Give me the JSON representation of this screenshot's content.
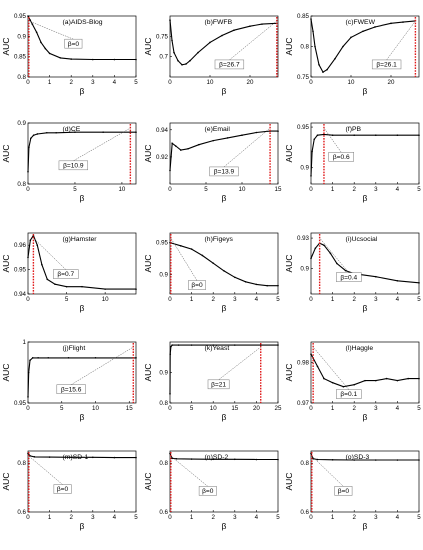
{
  "chart_data": [
    {
      "type": "line",
      "title": "(a)AIDS-Blog",
      "xlabel": "β",
      "ylabel": "AUC",
      "xlim": [
        0,
        5
      ],
      "ylim": [
        0.8,
        0.95
      ],
      "xticks": [
        "0",
        "1",
        "2",
        "3",
        "4",
        "5"
      ],
      "yticks": [
        "0.8",
        "0.85",
        "0.9",
        "0.95"
      ],
      "x": [
        0,
        0.1,
        0.2,
        0.4,
        0.6,
        0.8,
        1,
        1.5,
        2,
        3,
        4,
        5
      ],
      "y": [
        0.95,
        0.94,
        0.93,
        0.91,
        0.885,
        0.87,
        0.858,
        0.847,
        0.844,
        0.843,
        0.843,
        0.843
      ],
      "vline": 0,
      "annotation": "β=0"
    },
    {
      "type": "line",
      "title": "(b)FWFB",
      "xlabel": "β",
      "ylabel": "AUC",
      "xlim": [
        0,
        27
      ],
      "ylim": [
        0.65,
        0.8
      ],
      "xticks": [
        "0",
        "10",
        "20"
      ],
      "yticks": [
        "0.7",
        "0.75"
      ],
      "x": [
        0,
        0.5,
        1,
        2,
        3,
        4,
        5,
        7,
        10,
        13,
        16,
        20,
        23,
        26.7
      ],
      "y": [
        0.79,
        0.74,
        0.71,
        0.69,
        0.68,
        0.682,
        0.69,
        0.71,
        0.735,
        0.752,
        0.765,
        0.775,
        0.78,
        0.782
      ],
      "vline": 26.7,
      "annotation": "β=26.7"
    },
    {
      "type": "line",
      "title": "(c)FWEW",
      "xlabel": "β",
      "ylabel": "AUC",
      "xlim": [
        0,
        27
      ],
      "ylim": [
        0.75,
        0.85
      ],
      "xticks": [
        "0",
        "10",
        "20"
      ],
      "yticks": [
        "0.75",
        "0.8",
        "0.85"
      ],
      "x": [
        0,
        0.5,
        1,
        2,
        3,
        4,
        6,
        8,
        10,
        13,
        16,
        20,
        23,
        26.1
      ],
      "y": [
        0.845,
        0.825,
        0.8,
        0.77,
        0.758,
        0.762,
        0.78,
        0.8,
        0.815,
        0.825,
        0.832,
        0.838,
        0.84,
        0.842
      ],
      "vline": 26.1,
      "annotation": "β=26.1"
    },
    {
      "type": "line",
      "title": "(d)CE",
      "xlabel": "β",
      "ylabel": "AUC",
      "xlim": [
        0,
        11.5
      ],
      "ylim": [
        0.8,
        0.9
      ],
      "xticks": [
        "0",
        "5",
        "10"
      ],
      "yticks": [
        "0.8",
        "0.9"
      ],
      "x": [
        0,
        0.1,
        0.3,
        0.6,
        1,
        2,
        3,
        5,
        8,
        10.9,
        11.5
      ],
      "y": [
        0.82,
        0.86,
        0.875,
        0.88,
        0.882,
        0.884,
        0.884,
        0.885,
        0.885,
        0.885,
        0.885
      ],
      "vline": 10.9,
      "annotation": "β=10.9"
    },
    {
      "type": "line",
      "title": "(e)Email",
      "xlabel": "β",
      "ylabel": "AUC",
      "xlim": [
        0,
        15
      ],
      "ylim": [
        0.9,
        0.945
      ],
      "xticks": [
        "0",
        "5",
        "10",
        "15"
      ],
      "yticks": [
        "0.92",
        "0.94"
      ],
      "x": [
        0,
        0.3,
        0.8,
        1.5,
        2.5,
        4,
        6,
        8,
        10,
        12,
        13.9,
        15
      ],
      "y": [
        0.91,
        0.93,
        0.928,
        0.925,
        0.926,
        0.929,
        0.932,
        0.934,
        0.936,
        0.938,
        0.939,
        0.939
      ],
      "vline": 13.9,
      "annotation": "β=13.9"
    },
    {
      "type": "line",
      "title": "(f)PB",
      "xlabel": "β",
      "ylabel": "AUC",
      "xlim": [
        0,
        5
      ],
      "ylim": [
        0.88,
        0.955
      ],
      "xticks": [
        "0",
        "1",
        "2",
        "3",
        "4",
        "5"
      ],
      "yticks": [
        "0.9",
        "0.95"
      ],
      "x": [
        0,
        0.05,
        0.15,
        0.3,
        0.6,
        1,
        2,
        3,
        4,
        5
      ],
      "y": [
        0.89,
        0.92,
        0.935,
        0.94,
        0.941,
        0.94,
        0.94,
        0.94,
        0.94,
        0.94
      ],
      "vline": 0.6,
      "annotation": "β=0.6"
    },
    {
      "type": "line",
      "title": "(g)Hamster",
      "xlabel": "β",
      "ylabel": "AUC",
      "xlim": [
        0,
        14
      ],
      "ylim": [
        0.94,
        0.965
      ],
      "xticks": [
        "0",
        "5",
        "10"
      ],
      "yticks": [
        "0.94",
        "0.95",
        "0.96"
      ],
      "x": [
        0,
        0.3,
        0.7,
        1.2,
        1.8,
        2.5,
        3.5,
        5,
        7,
        10,
        14
      ],
      "y": [
        0.955,
        0.962,
        0.964,
        0.96,
        0.952,
        0.946,
        0.944,
        0.943,
        0.943,
        0.942,
        0.942
      ],
      "vline": 0.7,
      "annotation": "β=0.7"
    },
    {
      "type": "line",
      "title": "(h)Figeys",
      "xlabel": "β",
      "ylabel": "AUC",
      "xlim": [
        0,
        5
      ],
      "ylim": [
        0.87,
        0.965
      ],
      "xticks": [
        "0",
        "1",
        "2",
        "3",
        "4",
        "5"
      ],
      "yticks": [
        "0.9",
        "0.95"
      ],
      "x": [
        0,
        0.5,
        1,
        1.5,
        2,
        2.5,
        3,
        3.5,
        4,
        4.5,
        5
      ],
      "y": [
        0.95,
        0.945,
        0.94,
        0.93,
        0.918,
        0.906,
        0.896,
        0.889,
        0.885,
        0.883,
        0.883
      ],
      "vline": 0,
      "annotation": "β=0"
    },
    {
      "type": "line",
      "title": "(i)Ucsocial",
      "xlabel": "β",
      "ylabel": "AUC",
      "xlim": [
        0,
        5
      ],
      "ylim": [
        0.875,
        0.935
      ],
      "xticks": [
        "0",
        "1",
        "2",
        "3",
        "4",
        "5"
      ],
      "yticks": [
        "0.9",
        "0.93"
      ],
      "x": [
        0,
        0.2,
        0.4,
        0.6,
        0.9,
        1.2,
        1.6,
        2,
        3,
        4,
        5
      ],
      "y": [
        0.91,
        0.92,
        0.925,
        0.923,
        0.915,
        0.905,
        0.898,
        0.895,
        0.892,
        0.888,
        0.886
      ],
      "vline": 0.4,
      "annotation": "β=0.4"
    },
    {
      "type": "line",
      "title": "(j)Flight",
      "xlabel": "β",
      "ylabel": "AUC",
      "xlim": [
        0,
        16
      ],
      "ylim": [
        0.95,
        1
      ],
      "xticks": [
        "0",
        "5",
        "10",
        "15"
      ],
      "yticks": [
        "0.95",
        "1"
      ],
      "x": [
        0,
        0.1,
        0.3,
        0.7,
        1.5,
        3,
        6,
        10,
        15.6,
        16
      ],
      "y": [
        0.955,
        0.975,
        0.985,
        0.987,
        0.987,
        0.987,
        0.987,
        0.987,
        0.987,
        0.987
      ],
      "vline": 15.6,
      "annotation": "β=15.6"
    },
    {
      "type": "line",
      "title": "(k)Yeast",
      "xlabel": "β",
      "ylabel": "AUC",
      "xlim": [
        0,
        25
      ],
      "ylim": [
        0.8,
        1
      ],
      "xticks": [
        "0",
        "5",
        "10",
        "15",
        "20",
        "25"
      ],
      "yticks": [
        "0.8",
        "0.9"
      ],
      "x": [
        0,
        0.05,
        0.2,
        0.5,
        2,
        5,
        10,
        15,
        21,
        25
      ],
      "y": [
        0.83,
        0.96,
        0.985,
        0.99,
        0.99,
        0.99,
        0.99,
        0.99,
        0.99,
        0.99
      ],
      "vline": 21,
      "annotation": "β=21"
    },
    {
      "type": "line",
      "title": "(l)Haggle",
      "xlabel": "β",
      "ylabel": "AUC",
      "xlim": [
        0,
        5
      ],
      "ylim": [
        0.97,
        0.985
      ],
      "xticks": [
        "0",
        "1",
        "2",
        "3",
        "4",
        "5"
      ],
      "yticks": [
        "0.97",
        "0.98"
      ],
      "x": [
        0,
        0.1,
        0.3,
        0.6,
        1,
        1.5,
        2,
        2.5,
        3,
        3.5,
        4,
        4.5,
        5
      ],
      "y": [
        0.982,
        0.981,
        0.979,
        0.976,
        0.975,
        0.974,
        0.9745,
        0.9755,
        0.9755,
        0.976,
        0.9755,
        0.976,
        0.976
      ],
      "vline": 0.1,
      "annotation": "β=0.1"
    },
    {
      "type": "line",
      "title": "(m)SD-1",
      "xlabel": "β",
      "ylabel": "AUC",
      "xlim": [
        0,
        5
      ],
      "ylim": [
        0.6,
        0.85
      ],
      "xticks": [
        "0",
        "1",
        "2",
        "3",
        "4",
        "5"
      ],
      "yticks": [
        "0.6",
        "0.8"
      ],
      "x": [
        0,
        0.1,
        0.3,
        1,
        2,
        3,
        4,
        5
      ],
      "y": [
        0.84,
        0.83,
        0.826,
        0.825,
        0.824,
        0.824,
        0.823,
        0.823
      ],
      "vline": 0,
      "annotation": "β=0"
    },
    {
      "type": "line",
      "title": "(n)SD-2",
      "xlabel": "β",
      "ylabel": "AUC",
      "xlim": [
        0,
        5
      ],
      "ylim": [
        0.6,
        0.85
      ],
      "xticks": [
        "0",
        "1",
        "2",
        "3",
        "4",
        "5"
      ],
      "yticks": [
        "0.6",
        "0.8"
      ],
      "x": [
        0,
        0.1,
        0.3,
        1,
        2,
        3,
        4,
        5
      ],
      "y": [
        0.84,
        0.82,
        0.818,
        0.817,
        0.816,
        0.816,
        0.815,
        0.815
      ],
      "vline": 0,
      "annotation": "β=0"
    },
    {
      "type": "line",
      "title": "(o)SD-3",
      "xlabel": "β",
      "ylabel": "AUC",
      "xlim": [
        0,
        5
      ],
      "ylim": [
        0.6,
        0.85
      ],
      "xticks": [
        "0",
        "1",
        "2",
        "3",
        "4",
        "5"
      ],
      "yticks": [
        "0.6",
        "0.8"
      ],
      "x": [
        0,
        0.1,
        0.3,
        1,
        2,
        3,
        4,
        5
      ],
      "y": [
        0.84,
        0.818,
        0.815,
        0.814,
        0.813,
        0.813,
        0.813,
        0.813
      ],
      "vline": 0,
      "annotation": "β=0"
    }
  ],
  "colors": {
    "line": "#000000",
    "vline": "#e0191a",
    "box": "#777777"
  }
}
